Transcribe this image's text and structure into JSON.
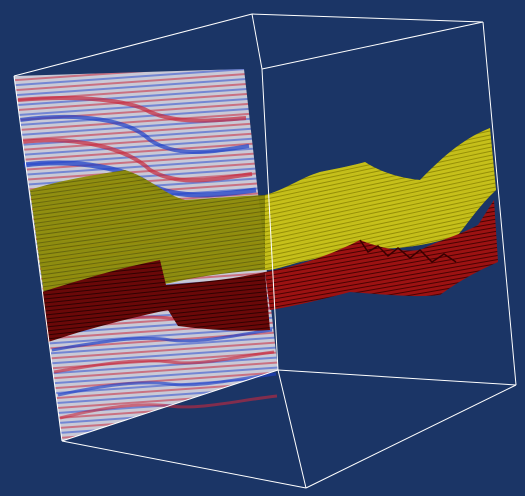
{
  "scene": {
    "background_color": "#1b3566",
    "box_color": "#ffffff",
    "horizons": [
      {
        "name": "upper-horizon",
        "color": "#8c8a00",
        "highlight": "#c9c419",
        "transparent": true
      },
      {
        "name": "lower-horizon",
        "color": "#5a0505",
        "highlight": "#a01414",
        "transparent": false
      }
    ],
    "seismic_section": {
      "colormap": [
        "#1030c8",
        "#c8c8d8",
        "#c81e1e"
      ],
      "background": "#c9c9d6"
    }
  }
}
